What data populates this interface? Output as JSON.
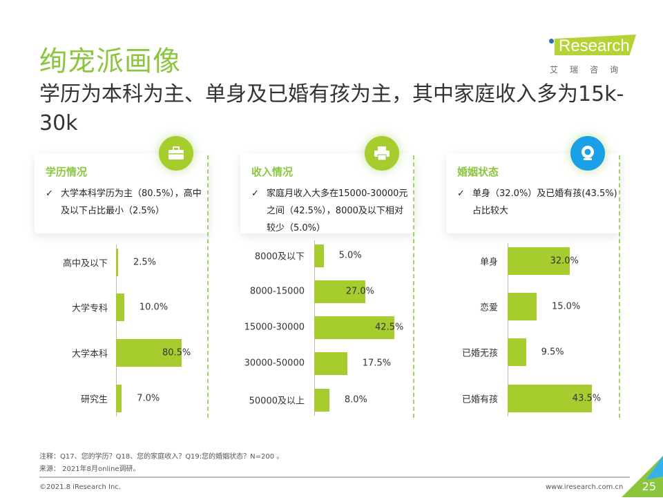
{
  "title": "绚宠派画像",
  "subtitle": "学历为本科为主、单身及已婚有孩为主，其中家庭收入多为15k-30k",
  "logo": {
    "text": "iResearch",
    "cn": "艾瑞咨询"
  },
  "colors": {
    "accent": "#8cc63f",
    "bar": "#a6cc2d",
    "icon_blue": "#1aa0e6"
  },
  "panels": [
    {
      "heading": "学历情况",
      "icon": "briefcase-icon",
      "desc": "大学本科学历为主（80.5%），高中及以下占比最小（2.5%）"
    },
    {
      "heading": "收入情况",
      "icon": "printer-icon",
      "desc": "家庭月收入大多在15000-30000元之间（42.5%），8000及以下相对较少（5.0%）"
    },
    {
      "heading": "婚姻状态",
      "icon": "webcam-icon",
      "desc": "单身（32.0%）及已婚有孩(43.5%)占比较大"
    }
  ],
  "chart_data": [
    {
      "type": "bar",
      "orientation": "horizontal",
      "categories": [
        "高中及以下",
        "大学专科",
        "大学本科",
        "研究生"
      ],
      "values": [
        2.5,
        10.0,
        80.5,
        7.0
      ],
      "labels": [
        "2.5%",
        "10.0%",
        "80.5%",
        "7.0%"
      ]
    },
    {
      "type": "bar",
      "orientation": "horizontal",
      "categories": [
        "8000及以下",
        "8000-15000",
        "15000-30000",
        "30000-50000",
        "50000及以上"
      ],
      "values": [
        5.0,
        27.0,
        42.5,
        17.5,
        8.0
      ],
      "labels": [
        "5.0%",
        "27.0%",
        "42.5%",
        "17.5%",
        "8.0%"
      ]
    },
    {
      "type": "bar",
      "orientation": "horizontal",
      "categories": [
        "单身",
        "恋爱",
        "已婚无孩",
        "已婚有孩"
      ],
      "values": [
        32.0,
        15.0,
        9.5,
        43.5
      ],
      "labels": [
        "32.0%",
        "15.0%",
        "9.5%",
        "43.5%"
      ]
    }
  ],
  "notes": {
    "note": "注释：Q17、您的学历？Q18、您的家庭收入？Q19:您的婚姻状态？N=200 。",
    "source": "来源： 2021年8月online调研。"
  },
  "footer": {
    "copyright": "©2021.8 iResearch Inc.",
    "url": "www.iresearch.com.cn",
    "page": "25"
  }
}
